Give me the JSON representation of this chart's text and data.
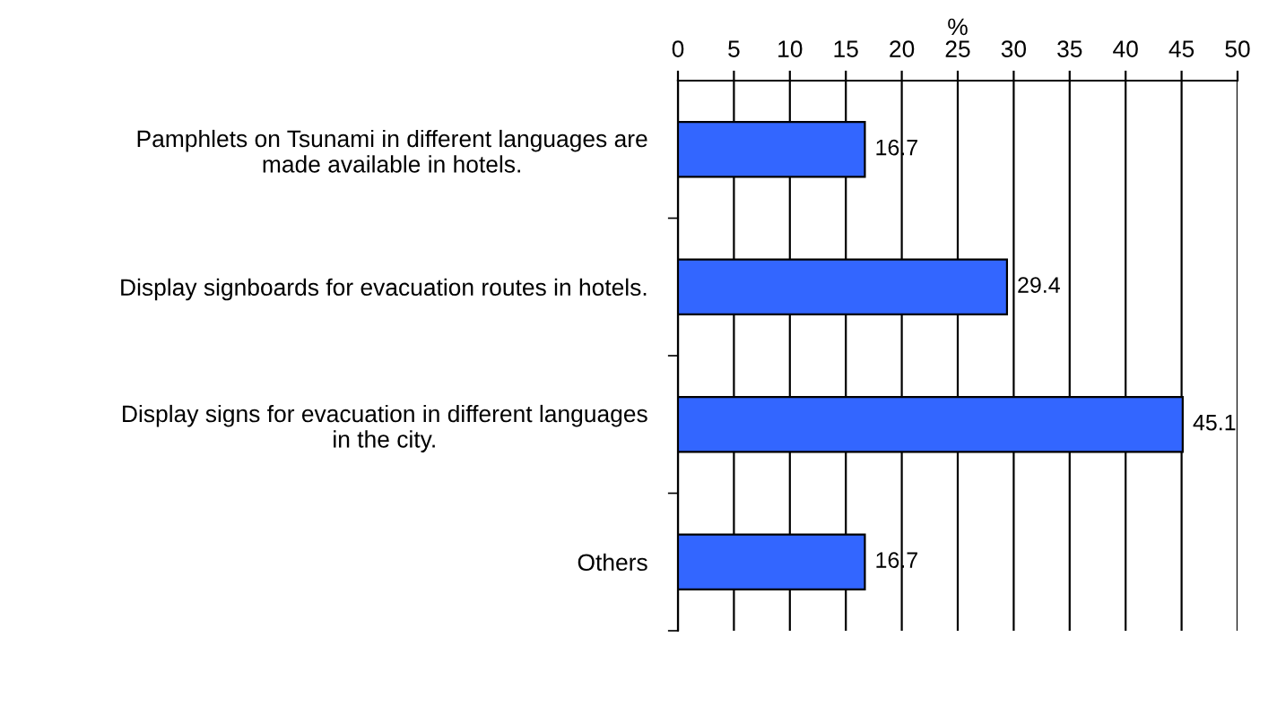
{
  "chart_data": {
    "type": "bar",
    "orientation": "horizontal",
    "xlabel": "%",
    "categories": [
      "Pamphlets on Tsunami in different languages are\nmade available in hotels.",
      "Display signboards for evacuation routes in hotels.",
      "Display signs for evacuation in different languages\nin the city.",
      "Others"
    ],
    "values": [
      16.7,
      29.4,
      45.1,
      16.7
    ],
    "color": "#3366ff",
    "xlim": [
      0,
      50
    ],
    "xticks": [
      0,
      5,
      10,
      15,
      20,
      25,
      30,
      35,
      40,
      45,
      50
    ],
    "grid": "x",
    "data_labels": true
  }
}
